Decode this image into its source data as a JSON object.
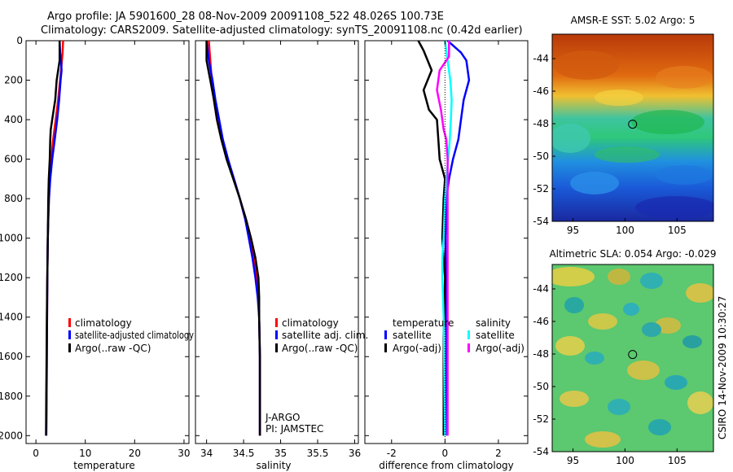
{
  "title": {
    "line1": "Argo profile: JA 5901600_28 08-Nov-2009 20091108_522 48.026S 100.73E",
    "line2": "Climatology: CARS2009. Satellite-adjusted climatology: synTS_20091108.nc (0.42d earlier)"
  },
  "side_stamp": "CSIRO 14-Nov-2009 10:30:27",
  "colors": {
    "red": "#ff0000",
    "blue": "#0000ff",
    "black": "#000000",
    "cyan": "#00ffff",
    "magenta": "#ff00ff"
  },
  "chart_data": [
    {
      "type": "line",
      "id": "temp",
      "xlabel": "temperature",
      "ylabel": "",
      "xlim": [
        -2,
        31
      ],
      "ylim": [
        2040,
        0
      ],
      "xticks": [
        "0",
        "10",
        "20",
        "30"
      ],
      "xtick_values": [
        0,
        10,
        20,
        30
      ],
      "yticks": [
        "0",
        "200",
        "400",
        "600",
        "800",
        "1000",
        "1200",
        "1400",
        "1600",
        "1800",
        "2000"
      ],
      "ytick_values": [
        0,
        200,
        400,
        600,
        800,
        1000,
        1200,
        1400,
        1600,
        1800,
        2000
      ],
      "legend": {
        "placement": "lower-left",
        "entries": [
          "climatology",
          "satellite-adjusted climatology",
          "Argo(..raw -QC)"
        ]
      },
      "series": [
        {
          "name": "climatology",
          "color": "red",
          "points": [
            [
              5.5,
              0
            ],
            [
              5.4,
              60
            ],
            [
              5.2,
              120
            ],
            [
              4.9,
              200
            ],
            [
              4.5,
              300
            ],
            [
              4.0,
              400
            ],
            [
              3.5,
              500
            ],
            [
              3.1,
              600
            ],
            [
              2.8,
              700
            ],
            [
              2.6,
              800
            ],
            [
              2.5,
              900
            ],
            [
              2.4,
              1000
            ],
            [
              2.3,
              1200
            ],
            [
              2.25,
              1400
            ],
            [
              2.2,
              1600
            ],
            [
              2.15,
              1800
            ],
            [
              2.1,
              2000
            ]
          ]
        },
        {
          "name": "satellite-adjusted climatology",
          "color": "blue",
          "points": [
            [
              4.8,
              0
            ],
            [
              4.9,
              60
            ],
            [
              5.1,
              100
            ],
            [
              5.2,
              150
            ],
            [
              5.0,
              200
            ],
            [
              4.7,
              300
            ],
            [
              4.3,
              400
            ],
            [
              3.8,
              500
            ],
            [
              3.3,
              600
            ],
            [
              2.9,
              700
            ],
            [
              2.65,
              800
            ],
            [
              2.5,
              900
            ],
            [
              2.4,
              1000
            ],
            [
              2.3,
              1200
            ],
            [
              2.25,
              1400
            ],
            [
              2.2,
              1600
            ],
            [
              2.15,
              1800
            ],
            [
              2.1,
              2000
            ]
          ]
        },
        {
          "name": "Argo(..raw -QC)",
          "color": "black",
          "points": [
            [
              4.8,
              0
            ],
            [
              4.8,
              100
            ],
            [
              4.5,
              150
            ],
            [
              4.2,
              200
            ],
            [
              3.9,
              300
            ],
            [
              3.6,
              350
            ],
            [
              3.3,
              400
            ],
            [
              3.0,
              450
            ],
            [
              2.9,
              500
            ],
            [
              2.8,
              600
            ],
            [
              2.6,
              700
            ],
            [
              2.5,
              800
            ],
            [
              2.4,
              1000
            ],
            [
              2.3,
              1200
            ],
            [
              2.2,
              1400
            ],
            [
              2.15,
              1600
            ],
            [
              2.1,
              1800
            ],
            [
              2.05,
              2000
            ]
          ]
        }
      ]
    },
    {
      "type": "line",
      "id": "sal",
      "xlabel": "salinity",
      "ylabel": "",
      "xlim": [
        33.85,
        36.05
      ],
      "ylim": [
        2040,
        0
      ],
      "xticks": [
        "34",
        "34.5",
        "35",
        "35.5",
        "36"
      ],
      "xtick_values": [
        34,
        34.5,
        35,
        35.5,
        36
      ],
      "legend": {
        "placement": "lower-left",
        "entries": [
          "climatology",
          "satellite adj. clim.",
          "Argo(..raw -QC)"
        ]
      },
      "annotations": [
        "J-ARGO",
        "PI: JAMSTEC"
      ],
      "series": [
        {
          "name": "climatology",
          "color": "red",
          "points": [
            [
              34.03,
              0
            ],
            [
              34.05,
              100
            ],
            [
              34.07,
              200
            ],
            [
              34.1,
              300
            ],
            [
              34.14,
              400
            ],
            [
              34.2,
              500
            ],
            [
              34.28,
              600
            ],
            [
              34.37,
              700
            ],
            [
              34.45,
              800
            ],
            [
              34.52,
              900
            ],
            [
              34.58,
              1000
            ],
            [
              34.64,
              1100
            ],
            [
              34.68,
              1200
            ],
            [
              34.7,
              1300
            ],
            [
              34.71,
              1400
            ],
            [
              34.72,
              1600
            ],
            [
              34.72,
              1800
            ],
            [
              34.72,
              2000
            ]
          ]
        },
        {
          "name": "satellite adj. clim.",
          "color": "blue",
          "points": [
            [
              34.0,
              0
            ],
            [
              34.03,
              100
            ],
            [
              34.08,
              200
            ],
            [
              34.12,
              300
            ],
            [
              34.17,
              400
            ],
            [
              34.22,
              500
            ],
            [
              34.29,
              600
            ],
            [
              34.37,
              700
            ],
            [
              34.45,
              800
            ],
            [
              34.52,
              900
            ],
            [
              34.57,
              1000
            ],
            [
              34.62,
              1100
            ],
            [
              34.66,
              1200
            ],
            [
              34.69,
              1300
            ],
            [
              34.71,
              1400
            ],
            [
              34.72,
              1600
            ],
            [
              34.72,
              1800
            ],
            [
              34.72,
              2000
            ]
          ]
        },
        {
          "name": "Argo(..raw -QC)",
          "color": "black",
          "points": [
            [
              34.0,
              0
            ],
            [
              34.0,
              100
            ],
            [
              34.05,
              200
            ],
            [
              34.1,
              300
            ],
            [
              34.14,
              400
            ],
            [
              34.2,
              500
            ],
            [
              34.27,
              600
            ],
            [
              34.36,
              700
            ],
            [
              34.45,
              800
            ],
            [
              34.53,
              900
            ],
            [
              34.6,
              1000
            ],
            [
              34.66,
              1100
            ],
            [
              34.7,
              1200
            ],
            [
              34.71,
              1300
            ],
            [
              34.71,
              1400
            ],
            [
              34.72,
              1600
            ],
            [
              34.72,
              1800
            ],
            [
              34.72,
              2000
            ]
          ]
        }
      ]
    },
    {
      "type": "line",
      "id": "diff",
      "xlabel": "difference from climatology",
      "ylabel": "",
      "xlim": [
        -3,
        3.1
      ],
      "ylim": [
        2040,
        0
      ],
      "xticks": [
        "-2",
        "0",
        "2"
      ],
      "xtick_values": [
        -2,
        0,
        2
      ],
      "legend": {
        "placement": "lower-left",
        "groups": [
          {
            "heading": "temperature",
            "entries": [
              "satellite",
              "Argo(-adj)"
            ]
          },
          {
            "heading": "salinity",
            "entries": [
              "satellite",
              "Argo(-adj)"
            ]
          }
        ]
      },
      "series": [
        {
          "name": "temperature satellite",
          "color": "blue",
          "points": [
            [
              0.1,
              0
            ],
            [
              0.6,
              60
            ],
            [
              0.8,
              100
            ],
            [
              0.9,
              200
            ],
            [
              0.7,
              300
            ],
            [
              0.6,
              400
            ],
            [
              0.5,
              500
            ],
            [
              0.3,
              600
            ],
            [
              0.15,
              700
            ],
            [
              0.05,
              800
            ],
            [
              0.02,
              1000
            ],
            [
              0.05,
              1500
            ],
            [
              0.05,
              2000
            ]
          ]
        },
        {
          "name": "temperature Argo(-adj)",
          "color": "black",
          "points": [
            [
              -1.0,
              0
            ],
            [
              -0.8,
              50
            ],
            [
              -0.5,
              150
            ],
            [
              -0.8,
              250
            ],
            [
              -0.6,
              350
            ],
            [
              -0.3,
              400
            ],
            [
              -0.25,
              500
            ],
            [
              -0.2,
              600
            ],
            [
              0.0,
              700
            ],
            [
              -0.05,
              800
            ],
            [
              -0.1,
              1000
            ],
            [
              -0.05,
              1100
            ],
            [
              0.0,
              1200
            ],
            [
              -0.05,
              1500
            ],
            [
              -0.05,
              2000
            ]
          ]
        },
        {
          "name": "salinity satellite",
          "color": "cyan",
          "points": [
            [
              0.0,
              0
            ],
            [
              0.1,
              100
            ],
            [
              0.2,
              200
            ],
            [
              0.25,
              300
            ],
            [
              0.22,
              400
            ],
            [
              0.18,
              500
            ],
            [
              0.12,
              600
            ],
            [
              0.05,
              700
            ],
            [
              0.0,
              800
            ],
            [
              -0.05,
              1000
            ],
            [
              -0.1,
              1100
            ],
            [
              -0.1,
              1200
            ],
            [
              -0.05,
              1400
            ],
            [
              0.0,
              2000
            ]
          ]
        },
        {
          "name": "salinity Argo(-adj)",
          "color": "magenta",
          "points": [
            [
              0.15,
              0
            ],
            [
              0.15,
              80
            ],
            [
              -0.2,
              150
            ],
            [
              -0.3,
              250
            ],
            [
              -0.15,
              350
            ],
            [
              -0.05,
              450
            ],
            [
              0.05,
              500
            ],
            [
              0.1,
              600
            ],
            [
              0.1,
              1000
            ],
            [
              0.1,
              1500
            ],
            [
              0.1,
              2000
            ]
          ]
        }
      ]
    },
    {
      "type": "heatmap",
      "id": "sst",
      "title": "AMSR-E SST: 5.02 Argo: 5",
      "xlim": [
        93,
        108.5
      ],
      "ylim": [
        -54,
        -42.5
      ],
      "xticks": [
        "95",
        "100",
        "105"
      ],
      "xtick_values": [
        95,
        100,
        105
      ],
      "yticks": [
        "-44",
        "-46",
        "-48",
        "-50",
        "-52",
        "-54"
      ],
      "ytick_values": [
        -44,
        -46,
        -48,
        -50,
        -52,
        -54
      ],
      "marker": {
        "lon": 100.73,
        "lat": -48.03
      }
    },
    {
      "type": "heatmap",
      "id": "sla",
      "title": "Altimetric SLA: 0.054 Argo: -0.029",
      "xlim": [
        93,
        108.5
      ],
      "ylim": [
        -54,
        -42.5
      ],
      "xticks": [
        "95",
        "100",
        "105"
      ],
      "xtick_values": [
        95,
        100,
        105
      ],
      "yticks": [
        "-44",
        "-46",
        "-48",
        "-50",
        "-52",
        "-54"
      ],
      "ytick_values": [
        -44,
        -46,
        -48,
        -50,
        -52,
        -54
      ],
      "marker": {
        "lon": 100.73,
        "lat": -48.03
      }
    }
  ]
}
